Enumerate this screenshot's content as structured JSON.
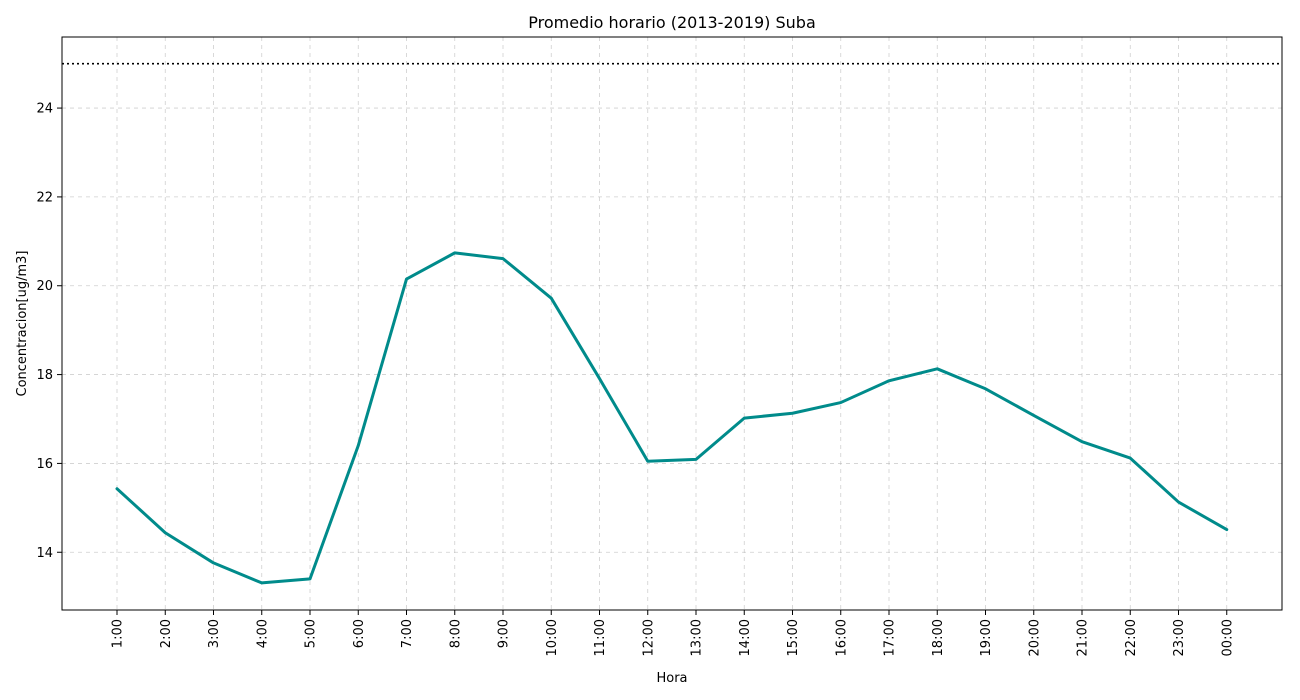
{
  "chart_data": {
    "type": "line",
    "title": "Promedio horario (2013-2019) Suba",
    "xlabel": "Hora",
    "ylabel": "Concentracion[ug/m3]",
    "categories": [
      "1:00",
      "2:00",
      "3:00",
      "4:00",
      "5:00",
      "6:00",
      "7:00",
      "8:00",
      "9:00",
      "10:00",
      "11:00",
      "12:00",
      "13:00",
      "14:00",
      "15:00",
      "16:00",
      "17:00",
      "18:00",
      "19:00",
      "20:00",
      "21:00",
      "22:00",
      "23:00",
      "00:00"
    ],
    "series": [
      {
        "color": "#008b8b",
        "values": [
          15.43,
          14.44,
          13.76,
          13.31,
          13.4,
          16.4,
          20.15,
          20.74,
          20.61,
          19.72,
          17.91,
          16.05,
          16.09,
          17.02,
          17.13,
          17.37,
          17.86,
          18.13,
          17.68,
          17.08,
          16.49,
          16.12,
          15.13,
          14.51
        ]
      }
    ],
    "reference_line": {
      "y": 25,
      "style": "dotted",
      "color": "#000000"
    },
    "ylim": [
      12.7,
      25.6
    ],
    "yticks": [
      14,
      16,
      18,
      20,
      22,
      24
    ],
    "grid": true,
    "legend": "none"
  }
}
